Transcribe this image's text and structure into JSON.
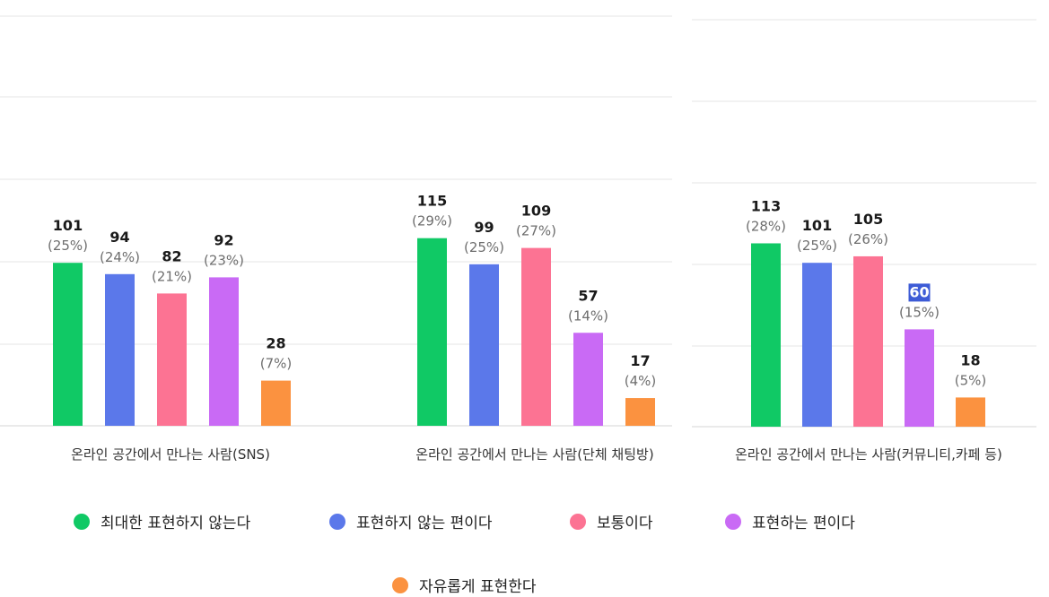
{
  "colors": {
    "series": [
      "#10c965",
      "#5b78ea",
      "#fc7393",
      "#c96af5",
      "#fb9240"
    ],
    "grid": "#e6e6e6",
    "axis_line": "#d6d6d6",
    "value_text": "#1a1a1a",
    "pct_text": "#6e6e6e",
    "category_text": "#333333",
    "highlight_bg": "#3d5bd6",
    "highlight_text": "#ffffff"
  },
  "legend": {
    "items": [
      {
        "label": "최대한 표현하지 않는다"
      },
      {
        "label": "표현하지 않는 편이다"
      },
      {
        "label": "보통이다"
      },
      {
        "label": "표현하는 편이다"
      },
      {
        "label": "자유롭게 표현한다"
      }
    ]
  },
  "chart_data": [
    {
      "type": "bar",
      "category": "온라인 공간에서 만나는 사람(SNS)",
      "series": [
        {
          "name": "최대한 표현하지 않는다",
          "value": 101,
          "pct": "(25%)"
        },
        {
          "name": "표현하지 않는 편이다",
          "value": 94,
          "pct": "(24%)"
        },
        {
          "name": "보통이다",
          "value": 82,
          "pct": "(21%)"
        },
        {
          "name": "표현하는 편이다",
          "value": 92,
          "pct": "(23%)"
        },
        {
          "name": "자유롭게 표현한다",
          "value": 28,
          "pct": "(7%)"
        }
      ],
      "grid": true
    },
    {
      "type": "bar",
      "category": "온라인 공간에서 만나는 사람(단체 채팅방)",
      "series": [
        {
          "name": "최대한 표현하지 않는다",
          "value": 115,
          "pct": "(29%)"
        },
        {
          "name": "표현하지 않는 편이다",
          "value": 99,
          "pct": "(25%)"
        },
        {
          "name": "보통이다",
          "value": 109,
          "pct": "(27%)"
        },
        {
          "name": "표현하는 편이다",
          "value": 57,
          "pct": "(14%)"
        },
        {
          "name": "자유롭게 표현한다",
          "value": 17,
          "pct": "(4%)"
        }
      ],
      "grid": true
    },
    {
      "type": "bar",
      "category": "온라인 공간에서 만나는 사람(커뮤니티,카페 등)",
      "series": [
        {
          "name": "최대한 표현하지 않는다",
          "value": 113,
          "pct": "(28%)"
        },
        {
          "name": "표현하지 않는 편이다",
          "value": 101,
          "pct": "(25%)"
        },
        {
          "name": "보통이다",
          "value": 105,
          "pct": "(26%)"
        },
        {
          "name": "표현하는 편이다",
          "value": 60,
          "pct": "(15%)",
          "highlighted": true
        },
        {
          "name": "자유롭게 표현한다",
          "value": 18,
          "pct": "(5%)"
        }
      ],
      "grid": true
    }
  ]
}
